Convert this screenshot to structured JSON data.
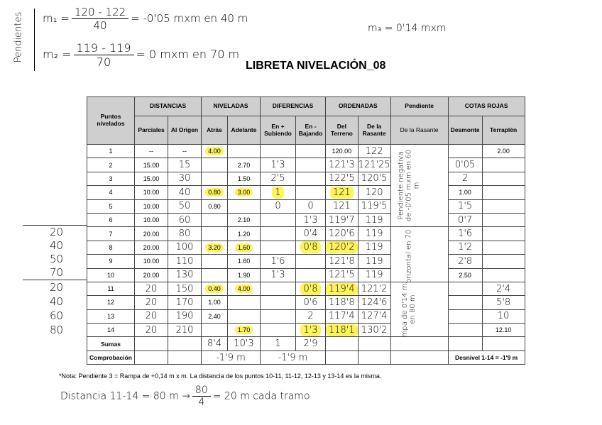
{
  "title": "LIBRETA NIVELACIÓN_08",
  "notes": {
    "side_label": "Pendientes",
    "m1_lhs": "m₁ =",
    "m1_num": "120 - 122",
    "m1_den": "40",
    "m1_rhs": "= -0'05 mxm en 40 m",
    "m2_lhs": "m₂ =",
    "m2_num": "119 - 119",
    "m2_den": "70",
    "m2_rhs": "= 0 mxm en 70 m",
    "m3": "m₃ = 0'14 mxm",
    "footnote": "*Nota: Pendiente 3 = Rampa de +0,14 m x m. La distancia de los puntos 10-11, 11-12, 12-13 y 13-14 es la misma.",
    "dist_lhs": "Distancia 11-14 = 80 m →",
    "dist_num": "80",
    "dist_den": "4",
    "dist_rhs": "= 20 m cada tramo",
    "margin_group1": [
      "20",
      "40",
      "50",
      "70"
    ],
    "margin_group2": [
      "20",
      "40",
      "60",
      "80"
    ]
  },
  "table": {
    "headers": {
      "puntos": "Puntos nivelados",
      "distancias": "DISTANCIAS",
      "niveladas": "NIVELADAS",
      "diferencias": "DIFERENCIAS",
      "ordenadas": "ORDENADAS",
      "pendiente": "Pendiente",
      "cotas": "COTAS ROJAS",
      "sub": [
        "Parciales",
        "Al Origen",
        "Atrás",
        "Adelante",
        "En + Subiendo",
        "En - Bajando",
        "Del Terreno",
        "De la Rasante",
        "De la Rasante",
        "Desmonte",
        "Terraplén"
      ]
    },
    "rows": [
      {
        "v": [
          "1",
          "--",
          "--",
          "4.00",
          "",
          "",
          "",
          "120.00",
          "122",
          "",
          "2.00"
        ],
        "hl": [
          3
        ],
        "hw": [
          8
        ]
      },
      {
        "v": [
          "2",
          "15.00",
          "15",
          "",
          "2.70",
          "1'3",
          "",
          "121'3",
          "121'25",
          "0'05",
          ""
        ],
        "hl": [],
        "hw": [
          2,
          5,
          7,
          8,
          9
        ]
      },
      {
        "v": [
          "3",
          "15.00",
          "30",
          "",
          "1.50",
          "2'5",
          "",
          "122'5",
          "120'5",
          "2",
          ""
        ],
        "hl": [],
        "hw": [
          2,
          5,
          7,
          8,
          9
        ]
      },
      {
        "v": [
          "4",
          "10.00",
          "40",
          "0.80",
          "3.00",
          "1",
          "",
          "121",
          "120",
          "1.00",
          ""
        ],
        "hl": [
          3,
          4,
          5,
          7
        ],
        "hw": [
          2,
          5,
          7,
          8
        ]
      },
      {
        "v": [
          "5",
          "10.00",
          "50",
          "0.80",
          "",
          "0",
          "0",
          "121",
          "119'5",
          "1'5",
          ""
        ],
        "hl": [],
        "hw": [
          2,
          5,
          6,
          7,
          8,
          9
        ]
      },
      {
        "v": [
          "6",
          "10.00",
          "60",
          "",
          "2.10",
          "",
          "1'3",
          "119'7",
          "119",
          "0'7",
          ""
        ],
        "hl": [],
        "hw": [
          2,
          6,
          7,
          8,
          9
        ]
      },
      {
        "v": [
          "7",
          "20.00",
          "80",
          "",
          "1.20",
          "",
          "0'4",
          "120'6",
          "119",
          "1'6",
          ""
        ],
        "hl": [],
        "hw": [
          2,
          6,
          7,
          8,
          9
        ]
      },
      {
        "v": [
          "8",
          "20.00",
          "100",
          "3.20",
          "1.60",
          "",
          "0'8",
          "120'2",
          "119",
          "1'2",
          ""
        ],
        "hl": [
          3,
          4,
          6,
          7
        ],
        "hw": [
          2,
          6,
          7,
          8,
          9
        ]
      },
      {
        "v": [
          "9",
          "10.00",
          "110",
          "",
          "1.60",
          "1'6",
          "",
          "121'8",
          "119",
          "2'8",
          ""
        ],
        "hl": [],
        "hw": [
          2,
          5,
          7,
          8,
          9
        ]
      },
      {
        "v": [
          "10",
          "20.00",
          "130",
          "",
          "1.90",
          "1'3",
          "",
          "121'5",
          "119",
          "2.50",
          ""
        ],
        "hl": [],
        "hw": [
          2,
          5,
          7,
          8
        ]
      },
      {
        "v": [
          "11",
          "20",
          "150",
          "0.40",
          "4.00",
          "",
          "0'8",
          "119'4",
          "121'2",
          "",
          "2'4"
        ],
        "hl": [
          3,
          4,
          6,
          7
        ],
        "hw": [
          1,
          2,
          6,
          7,
          8,
          10
        ]
      },
      {
        "v": [
          "12",
          "20",
          "170",
          "1.00",
          "",
          "",
          "0'6",
          "118'8",
          "124'6",
          "",
          "5'8"
        ],
        "hl": [],
        "hw": [
          1,
          2,
          6,
          7,
          8,
          10
        ]
      },
      {
        "v": [
          "13",
          "20",
          "190",
          "2.40",
          "",
          "",
          "2",
          "117'4",
          "127'4",
          "",
          "10"
        ],
        "hl": [],
        "hw": [
          1,
          2,
          6,
          7,
          8,
          10
        ]
      },
      {
        "v": [
          "14",
          "20",
          "210",
          "",
          "1.70",
          "",
          "1'3",
          "118'1",
          "130'2",
          "",
          "12.10"
        ],
        "hl": [
          4,
          6,
          7
        ],
        "hw": [
          1,
          2,
          6,
          7,
          8
        ]
      }
    ],
    "pendiente_notes": [
      "Pendiente negativa de -0'05 mxm en 60 m",
      "Horizontal en 70 m",
      "Rampa de 0'14 mxm en 80 m"
    ],
    "sumas": {
      "label": "Sumas",
      "atras": "8'4",
      "adelante": "10'3",
      "subiendo": "1",
      "bajando": "2'9"
    },
    "comprobacion": {
      "label": "Comprobación",
      "niveladas": "-1'9 m",
      "diferencias": "-1'9 m",
      "desnivel": "Desnivel 1-14 = -1'9 m"
    }
  },
  "colors": {
    "highlight": "#fdf35a",
    "header_bg": "#cfcfcf"
  }
}
